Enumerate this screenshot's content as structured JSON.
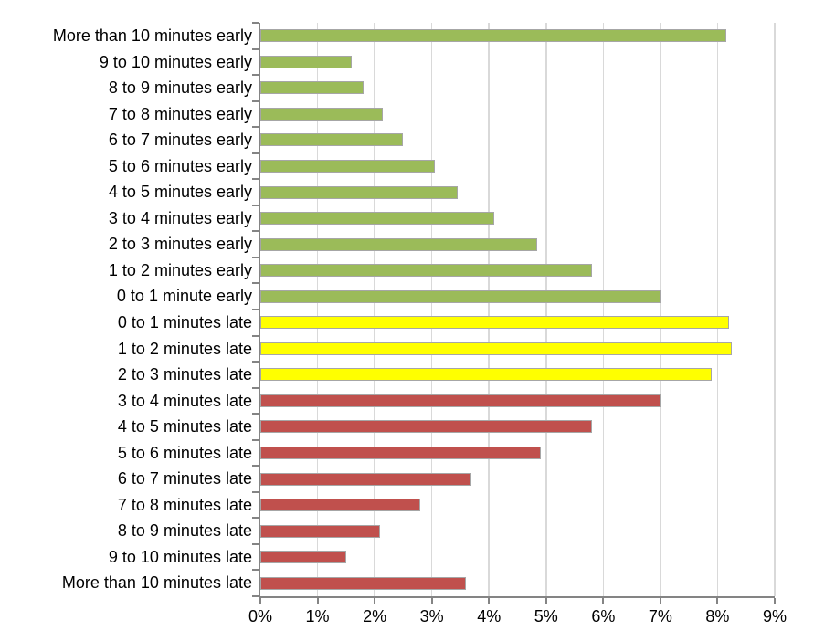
{
  "chart_data": {
    "type": "bar",
    "orientation": "horizontal",
    "title": "",
    "xlabel": "",
    "ylabel": "",
    "xlim": [
      0,
      9
    ],
    "x_tick_labels": [
      "0%",
      "1%",
      "2%",
      "3%",
      "4%",
      "5%",
      "6%",
      "7%",
      "8%",
      "9%"
    ],
    "grid": "vertical-only",
    "legend": "none",
    "value_unit": "percent",
    "categories": [
      "More than 10 minutes early",
      "9 to 10 minutes early",
      "8 to 9 minutes early",
      "7 to 8 minutes early",
      "6 to 7 minutes early",
      "5 to 6 minutes early",
      "4 to 5 minutes early",
      "3 to 4 minutes early",
      "2 to 3 minutes early",
      "1 to 2 minutes early",
      "0 to 1 minute early",
      "0 to 1 minutes late",
      "1 to 2 minutes late",
      "2 to 3 minutes late",
      "3 to 4 minutes late",
      "4 to 5 minutes late",
      "5 to 6 minutes late",
      "6 to 7 minutes late",
      "7 to 8 minutes late",
      "8 to 9 minutes late",
      "9 to 10 minutes late",
      "More than 10 minutes late"
    ],
    "values": [
      8.15,
      1.6,
      1.8,
      2.15,
      2.5,
      3.05,
      3.45,
      4.1,
      4.85,
      5.8,
      7.0,
      8.2,
      8.25,
      7.9,
      7.0,
      5.8,
      4.9,
      3.7,
      2.8,
      2.1,
      1.5,
      3.6
    ],
    "groups": [
      "early",
      "early",
      "early",
      "early",
      "early",
      "early",
      "early",
      "early",
      "early",
      "early",
      "early",
      "slightly-late",
      "slightly-late",
      "slightly-late",
      "late",
      "late",
      "late",
      "late",
      "late",
      "late",
      "late",
      "late"
    ],
    "group_colors": {
      "early": "#9bbb59",
      "slightly-late": "#ffff00",
      "late": "#c0504d"
    },
    "bar_border_color": "#a6a6a6",
    "gridline_color": "#d9d9d9",
    "axis_color": "#848484",
    "text_color": "#000000"
  }
}
